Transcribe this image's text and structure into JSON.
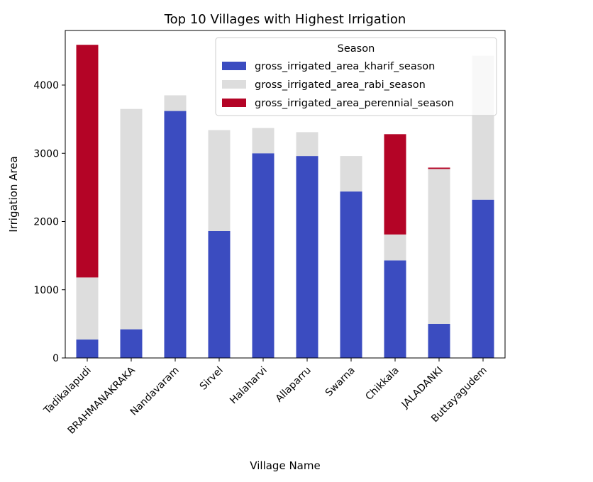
{
  "chart_data": {
    "type": "bar",
    "stacked": true,
    "title": "Top 10 Villages with Highest Irrigation",
    "xlabel": "Village Name",
    "ylabel": "Irrigation Area",
    "ylim": [
      0,
      4800
    ],
    "yticks": [
      0,
      1000,
      2000,
      3000,
      4000
    ],
    "grid": false,
    "legend_title": "Season",
    "legend_position": "top-right",
    "categories": [
      "Tadikalapudi",
      "BRAHMANAKRAKA",
      "Nandavaram",
      "Sirvel",
      "Halaharvi",
      "Allaparru",
      "Swarna",
      "Chikkala",
      "JALADANKI",
      "Buttayagudem"
    ],
    "series": [
      {
        "name": "gross_irrigated_area_kharif_season",
        "color": "#3b4cc0",
        "values": [
          270,
          420,
          3620,
          1860,
          3000,
          2960,
          2440,
          1430,
          500,
          2320
        ]
      },
      {
        "name": "gross_irrigated_area_rabi_season",
        "color": "#dddddd",
        "values": [
          910,
          3230,
          230,
          1480,
          370,
          350,
          520,
          380,
          2270,
          2110
        ]
      },
      {
        "name": "gross_irrigated_area_perennial_season",
        "color": "#b40426",
        "values": [
          3410,
          0,
          0,
          0,
          0,
          0,
          0,
          1470,
          20,
          0
        ]
      }
    ]
  }
}
